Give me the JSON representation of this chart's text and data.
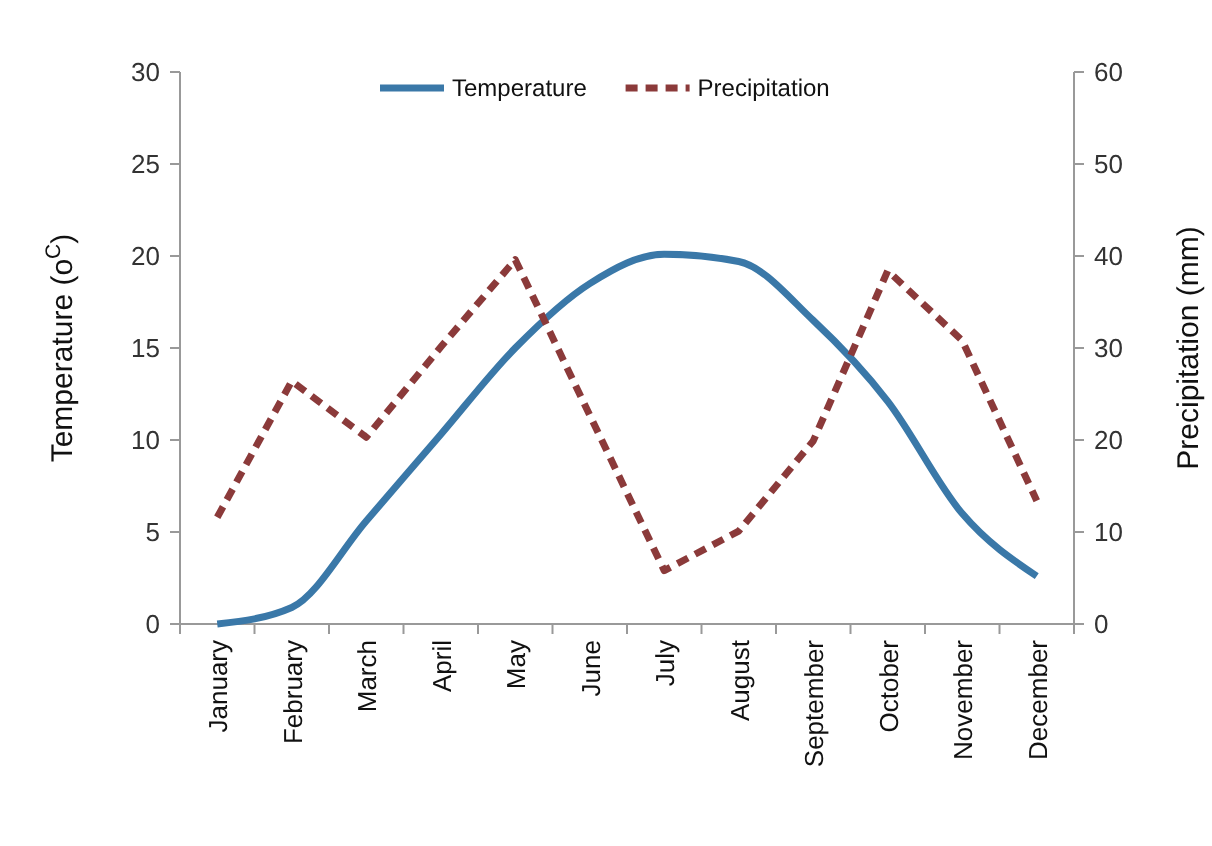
{
  "chart_data": {
    "type": "line",
    "categories": [
      "January",
      "February",
      "March",
      "April",
      "May",
      "June",
      "July",
      "August",
      "September",
      "October",
      "November",
      "December"
    ],
    "series": [
      {
        "name": "Temperature",
        "color": "#3a78a8",
        "line_style": "solid",
        "values": [
          0,
          0.9,
          5.6,
          10.3,
          15,
          18.5,
          20.1,
          19.7,
          16.5,
          12.1,
          6,
          2.6
        ]
      },
      {
        "name": "Precipitation",
        "color": "#8b3a3a",
        "line_style": "dashed",
        "axis": "y2",
        "values": [
          11.6,
          26.4,
          20.3,
          30.1,
          39.6,
          22.7,
          5.8,
          10.1,
          19.9,
          38.4,
          30.8,
          13.4
        ]
      }
    ],
    "ylabel": "Temperature (o$^{C}$)",
    "y2label": "Precipitation (mm)",
    "ylim": [
      0,
      30
    ],
    "yticks": [
      0,
      5,
      10,
      15,
      20,
      25,
      30
    ],
    "y2lim": [
      0,
      60
    ],
    "y2ticks": [
      0,
      10,
      20,
      30,
      40,
      50,
      60
    ],
    "legend": "top",
    "grid": false,
    "marker": "none"
  }
}
